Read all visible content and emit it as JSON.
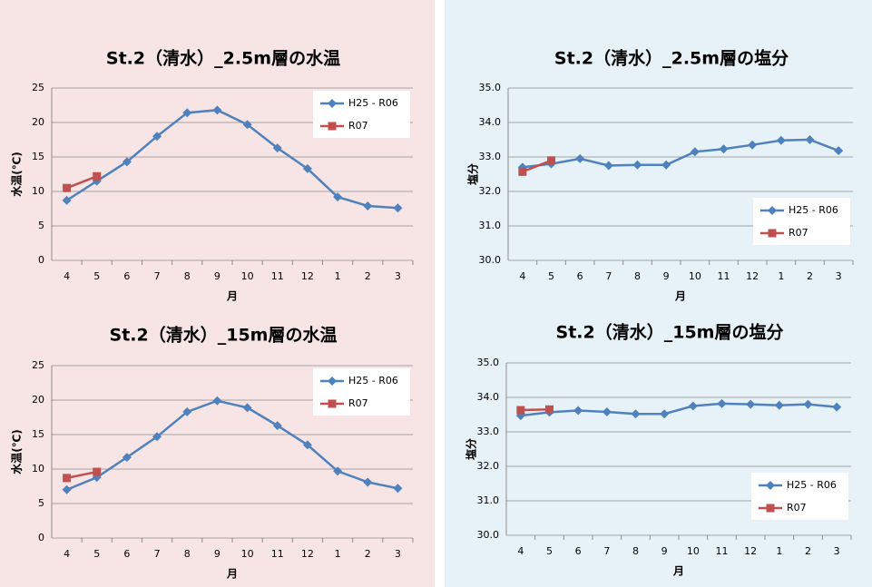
{
  "chart_data": [
    {
      "type": "line",
      "title": "St.2（清水）_2.5m層の水温",
      "x_label": "月",
      "y_label": "水温(℃)",
      "categories": [
        "4",
        "5",
        "6",
        "7",
        "8",
        "9",
        "10",
        "11",
        "12",
        "1",
        "2",
        "3"
      ],
      "series": [
        {
          "name": "H25 - R06",
          "color": "#4f81bd",
          "marker": "diamond",
          "values": [
            8.7,
            11.5,
            14.3,
            18.0,
            21.4,
            21.8,
            19.7,
            16.3,
            13.3,
            9.2,
            7.9,
            7.6
          ]
        },
        {
          "name": "R07",
          "color": "#c0504d",
          "marker": "square",
          "values": [
            10.5,
            12.2,
            null,
            null,
            null,
            null,
            null,
            null,
            null,
            null,
            null,
            null
          ]
        }
      ],
      "ylim": [
        0,
        25
      ],
      "yticks": [
        0,
        5,
        10,
        15,
        20,
        25
      ],
      "grid": true,
      "legend": "upper right"
    },
    {
      "type": "line",
      "title": "St.2（清水）_2.5m層の塩分",
      "x_label": "月",
      "y_label": "塩分",
      "categories": [
        "4",
        "5",
        "6",
        "7",
        "8",
        "9",
        "10",
        "11",
        "12",
        "1",
        "2",
        "3"
      ],
      "series": [
        {
          "name": "H25 - R06",
          "color": "#4f81bd",
          "marker": "diamond",
          "values": [
            32.7,
            32.8,
            32.95,
            32.75,
            32.77,
            32.77,
            33.15,
            33.23,
            33.35,
            33.48,
            33.5,
            33.18
          ]
        },
        {
          "name": "R07",
          "color": "#c0504d",
          "marker": "square",
          "values": [
            32.57,
            32.9,
            null,
            null,
            null,
            null,
            null,
            null,
            null,
            null,
            null,
            null
          ]
        }
      ],
      "ylim": [
        30,
        35
      ],
      "yticks": [
        {
          "value": 30,
          "label": "30.0"
        },
        {
          "value": 31,
          "label": "31.0"
        },
        {
          "value": 32,
          "label": "32.0"
        },
        {
          "value": 33,
          "label": "33.0"
        },
        {
          "value": 34,
          "label": "34.0"
        },
        {
          "value": 35,
          "label": "35.0"
        }
      ],
      "grid": true,
      "legend": "lower right"
    },
    {
      "type": "line",
      "title": "St.2（清水）_15m層の水温",
      "x_label": "月",
      "y_label": "水温(℃)",
      "categories": [
        "4",
        "5",
        "6",
        "7",
        "8",
        "9",
        "10",
        "11",
        "12",
        "1",
        "2",
        "3"
      ],
      "series": [
        {
          "name": "H25 - R06",
          "color": "#4f81bd",
          "marker": "diamond",
          "values": [
            7.0,
            8.8,
            11.7,
            14.7,
            18.3,
            19.9,
            18.9,
            16.3,
            13.5,
            9.7,
            8.1,
            7.2
          ]
        },
        {
          "name": "R07",
          "color": "#c0504d",
          "marker": "square",
          "values": [
            8.7,
            9.6,
            null,
            null,
            null,
            null,
            null,
            null,
            null,
            null,
            null,
            null
          ]
        }
      ],
      "ylim": [
        0,
        25
      ],
      "yticks": [
        0,
        5,
        10,
        15,
        20,
        25
      ],
      "grid": true,
      "legend": "upper right"
    },
    {
      "type": "line",
      "title": "St.2（清水）_15m層の塩分",
      "x_label": "月",
      "y_label": "塩分",
      "categories": [
        "4",
        "5",
        "6",
        "7",
        "8",
        "9",
        "10",
        "11",
        "12",
        "1",
        "2",
        "3"
      ],
      "series": [
        {
          "name": "H25 - R06",
          "color": "#4f81bd",
          "marker": "diamond",
          "values": [
            33.47,
            33.57,
            33.62,
            33.58,
            33.52,
            33.52,
            33.75,
            33.82,
            33.8,
            33.77,
            33.8,
            33.72
          ]
        },
        {
          "name": "R07",
          "color": "#c0504d",
          "marker": "square",
          "values": [
            33.63,
            33.65,
            null,
            null,
            null,
            null,
            null,
            null,
            null,
            null,
            null,
            null
          ]
        }
      ],
      "ylim": [
        30,
        35
      ],
      "yticks": [
        {
          "value": 30,
          "label": "30.0"
        },
        {
          "value": 31,
          "label": "31.0"
        },
        {
          "value": 32,
          "label": "32.0"
        },
        {
          "value": 33,
          "label": "33.0"
        },
        {
          "value": 34,
          "label": "34.0"
        },
        {
          "value": 35,
          "label": "35.0"
        }
      ],
      "grid": true,
      "legend": "lower right"
    }
  ]
}
